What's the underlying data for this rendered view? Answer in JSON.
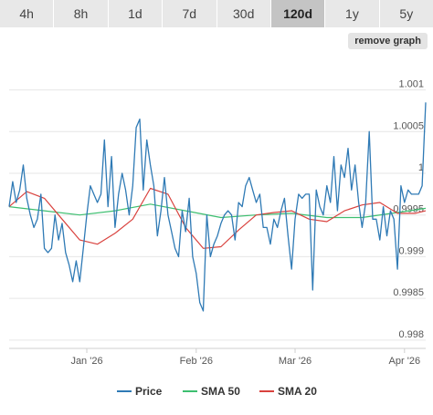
{
  "tabs": [
    {
      "label": "4h",
      "active": false
    },
    {
      "label": "8h",
      "active": false
    },
    {
      "label": "1d",
      "active": false
    },
    {
      "label": "7d",
      "active": false
    },
    {
      "label": "30d",
      "active": false
    },
    {
      "label": "120d",
      "active": true
    },
    {
      "label": "1y",
      "active": false
    },
    {
      "label": "5y",
      "active": false
    }
  ],
  "remove_graph_label": "remove graph",
  "chart_data": {
    "type": "line",
    "title": "",
    "xlabel": "",
    "ylabel": "",
    "ylim": [
      0.9979,
      1.0014
    ],
    "y_ticks": [
      {
        "value": 0.998,
        "label": "0.998"
      },
      {
        "value": 0.9985,
        "label": "0.9985"
      },
      {
        "value": 0.999,
        "label": "0.999"
      },
      {
        "value": 0.9995,
        "label": "0.9995"
      },
      {
        "value": 1.0,
        "label": "1"
      },
      {
        "value": 1.0005,
        "label": "1.0005"
      },
      {
        "value": 1.001,
        "label": "1.001"
      }
    ],
    "x_ticks": [
      {
        "day": 22,
        "label": "Jan '26"
      },
      {
        "day": 53,
        "label": "Feb '26"
      },
      {
        "day": 81,
        "label": "Mar '26"
      },
      {
        "day": 112,
        "label": "Apr '26"
      }
    ],
    "xlim": [
      0,
      118
    ],
    "grid": true,
    "legend": "bottom",
    "series": [
      {
        "name": "Price",
        "color": "#2f7ab5",
        "x": [
          0,
          1,
          2,
          3,
          4,
          5,
          6,
          7,
          8,
          9,
          10,
          11,
          12,
          13,
          14,
          15,
          16,
          17,
          18,
          19,
          20,
          21,
          22,
          23,
          24,
          25,
          26,
          27,
          28,
          29,
          30,
          31,
          32,
          33,
          34,
          35,
          36,
          37,
          38,
          39,
          40,
          41,
          42,
          43,
          44,
          45,
          46,
          47,
          48,
          49,
          50,
          51,
          52,
          53,
          54,
          55,
          56,
          57,
          58,
          59,
          60,
          61,
          62,
          63,
          64,
          65,
          66,
          67,
          68,
          69,
          70,
          71,
          72,
          73,
          74,
          75,
          76,
          77,
          78,
          79,
          80,
          81,
          82,
          83,
          84,
          85,
          86,
          87,
          88,
          89,
          90,
          91,
          92,
          93,
          94,
          95,
          96,
          97,
          98,
          99,
          100,
          101,
          102,
          103,
          104,
          105,
          106,
          107,
          108,
          109,
          110,
          111,
          112,
          113,
          114,
          115,
          116,
          117,
          118
        ],
        "values": [
          0.9996,
          0.9999,
          0.99965,
          0.9998,
          1.0001,
          0.9997,
          0.9995,
          0.99935,
          0.99945,
          0.99975,
          0.9991,
          0.99905,
          0.9991,
          0.9995,
          0.9992,
          0.9994,
          0.99905,
          0.9989,
          0.9987,
          0.99895,
          0.9987,
          0.9991,
          0.9995,
          0.99985,
          0.99975,
          0.99965,
          0.99975,
          1.0004,
          0.9996,
          1.0002,
          0.99935,
          0.99975,
          1.0,
          0.9998,
          0.9995,
          0.99985,
          1.00055,
          1.00065,
          0.9998,
          1.0004,
          1.0001,
          0.99985,
          0.99925,
          0.99955,
          0.99995,
          0.9995,
          0.9993,
          0.9991,
          0.999,
          0.99955,
          0.9993,
          0.9997,
          0.999,
          0.9988,
          0.99845,
          0.99835,
          0.9995,
          0.999,
          0.99915,
          0.99925,
          0.9994,
          0.9995,
          0.99955,
          0.9995,
          0.9992,
          0.99965,
          0.9996,
          0.99985,
          0.99995,
          0.9998,
          0.99965,
          0.99975,
          0.99935,
          0.99935,
          0.99915,
          0.99945,
          0.99935,
          0.99955,
          0.9997,
          0.99925,
          0.99885,
          0.99945,
          0.99975,
          0.9997,
          0.99975,
          0.99975,
          0.9986,
          0.9998,
          0.9996,
          0.9995,
          0.99985,
          0.99965,
          1.0002,
          0.99955,
          1.0001,
          0.99995,
          1.0003,
          0.9998,
          1.0001,
          0.99965,
          0.99935,
          0.99965,
          1.0005,
          0.99945,
          0.99945,
          0.9992,
          0.9996,
          0.99925,
          0.99955,
          0.99945,
          0.99885,
          0.99985,
          0.99965,
          0.9998,
          0.99975,
          0.99975,
          0.99975,
          0.99985,
          1.00085
        ]
      },
      {
        "name": "SMA 50",
        "color": "#3dbf70",
        "x": [
          0,
          10,
          20,
          30,
          40,
          50,
          60,
          70,
          80,
          90,
          100,
          110,
          118
        ],
        "values": [
          0.9996,
          0.99955,
          0.9995,
          0.99955,
          0.99963,
          0.99955,
          0.99947,
          0.9995,
          0.99952,
          0.99947,
          0.99947,
          0.99953,
          0.99958
        ]
      },
      {
        "name": "SMA 20",
        "color": "#d9423e",
        "x": [
          0,
          5,
          10,
          15,
          20,
          25,
          30,
          35,
          40,
          45,
          50,
          55,
          60,
          65,
          70,
          75,
          80,
          85,
          90,
          95,
          100,
          105,
          110,
          115,
          118
        ],
        "values": [
          0.9996,
          0.99978,
          0.9997,
          0.99945,
          0.9992,
          0.99915,
          0.99928,
          0.99945,
          0.99982,
          0.99975,
          0.99935,
          0.9991,
          0.99912,
          0.99932,
          0.9995,
          0.99953,
          0.99955,
          0.99945,
          0.99942,
          0.99955,
          0.99962,
          0.99965,
          0.99952,
          0.99952,
          0.99955
        ]
      }
    ]
  }
}
